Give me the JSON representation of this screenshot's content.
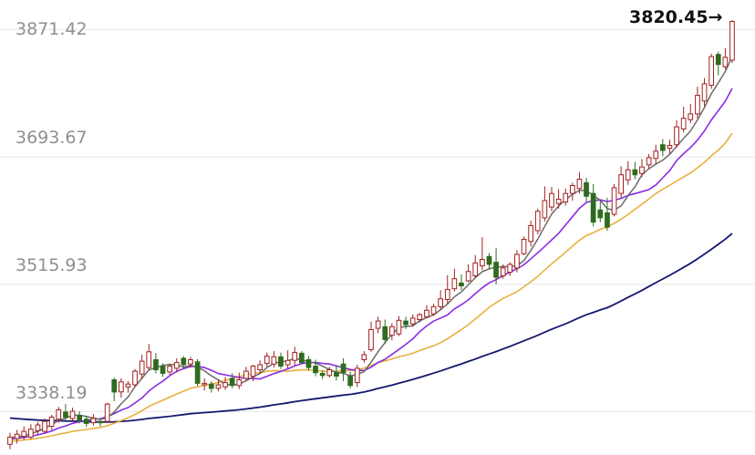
{
  "chart_data": {
    "type": "candlestick",
    "y_ticks": [
      "3871.42",
      "3693.67",
      "3515.93",
      "3338.19"
    ],
    "y_tick_values": [
      3871.42,
      3693.67,
      3515.93,
      3338.19
    ],
    "ylim": [
      3265.0,
      3900.0
    ],
    "grid": true,
    "annotation": {
      "text": "3820.45→",
      "value": 3820.45
    },
    "colors": {
      "up": "#a0201f",
      "down": "#2e6b1f",
      "ma5": "#6b6b6b",
      "ma10": "#8a2be2",
      "ma20": "#e8b040",
      "ma60": "#141870"
    },
    "candles": [
      [
        3280,
        3290,
        3296,
        3273
      ],
      [
        3288,
        3294,
        3300,
        3281
      ],
      [
        3291,
        3298,
        3305,
        3286
      ],
      [
        3290,
        3301,
        3308,
        3287
      ],
      [
        3299,
        3307,
        3311,
        3293
      ],
      [
        3298,
        3312,
        3316,
        3296
      ],
      [
        3305,
        3318,
        3321,
        3300
      ],
      [
        3315,
        3328,
        3332,
        3310
      ],
      [
        3325,
        3318,
        3336,
        3314
      ],
      [
        3316,
        3326,
        3331,
        3312
      ],
      [
        3320,
        3313,
        3326,
        3309
      ],
      [
        3315,
        3309,
        3320,
        3304
      ],
      [
        3310,
        3316,
        3322,
        3306
      ],
      [
        3312,
        3310,
        3315,
        3305
      ],
      [
        3312,
        3336,
        3338,
        3310
      ],
      [
        3370,
        3353,
        3373,
        3340
      ],
      [
        3353,
        3367,
        3372,
        3345
      ],
      [
        3360,
        3364,
        3368,
        3352
      ],
      [
        3363,
        3382,
        3385,
        3360
      ],
      [
        3378,
        3396,
        3405,
        3371
      ],
      [
        3387,
        3409,
        3420,
        3383
      ],
      [
        3398,
        3384,
        3407,
        3379
      ],
      [
        3389,
        3379,
        3393,
        3374
      ],
      [
        3381,
        3389,
        3393,
        3377
      ],
      [
        3386,
        3394,
        3400,
        3380
      ],
      [
        3400,
        3391,
        3403,
        3385
      ],
      [
        3392,
        3398,
        3402,
        3387
      ],
      [
        3395,
        3365,
        3399,
        3361
      ],
      [
        3363,
        3365,
        3372,
        3355
      ],
      [
        3364,
        3358,
        3368,
        3352
      ],
      [
        3358,
        3363,
        3370,
        3354
      ],
      [
        3360,
        3366,
        3374,
        3356
      ],
      [
        3372,
        3362,
        3379,
        3358
      ],
      [
        3362,
        3370,
        3380,
        3357
      ],
      [
        3372,
        3382,
        3388,
        3369
      ],
      [
        3375,
        3389,
        3391,
        3368
      ],
      [
        3384,
        3391,
        3397,
        3379
      ],
      [
        3393,
        3403,
        3408,
        3388
      ],
      [
        3392,
        3402,
        3410,
        3387
      ],
      [
        3402,
        3389,
        3408,
        3385
      ],
      [
        3391,
        3397,
        3411,
        3386
      ],
      [
        3397,
        3408,
        3416,
        3390
      ],
      [
        3407,
        3394,
        3410,
        3392
      ],
      [
        3398,
        3387,
        3403,
        3383
      ],
      [
        3389,
        3380,
        3398,
        3375
      ],
      [
        3379,
        3376,
        3383,
        3371
      ],
      [
        3376,
        3384,
        3388,
        3373
      ],
      [
        3380,
        3375,
        3391,
        3369
      ],
      [
        3392,
        3380,
        3400,
        3368
      ],
      [
        3375,
        3362,
        3381,
        3358
      ],
      [
        3366,
        3386,
        3391,
        3360
      ],
      [
        3398,
        3405,
        3410,
        3394
      ],
      [
        3412,
        3440,
        3451,
        3409
      ],
      [
        3442,
        3452,
        3458,
        3435
      ],
      [
        3444,
        3426,
        3454,
        3420
      ],
      [
        3432,
        3444,
        3449,
        3425
      ],
      [
        3434,
        3453,
        3459,
        3431
      ],
      [
        3452,
        3447,
        3458,
        3441
      ],
      [
        3448,
        3456,
        3461,
        3444
      ],
      [
        3454,
        3461,
        3463,
        3450
      ],
      [
        3458,
        3467,
        3474,
        3456
      ],
      [
        3462,
        3472,
        3476,
        3459
      ],
      [
        3472,
        3483,
        3495,
        3468
      ],
      [
        3482,
        3496,
        3516,
        3476
      ],
      [
        3497,
        3511,
        3525,
        3493
      ],
      [
        3505,
        3501,
        3517,
        3495
      ],
      [
        3508,
        3521,
        3531,
        3506
      ],
      [
        3515,
        3533,
        3544,
        3512
      ],
      [
        3529,
        3538,
        3569,
        3523
      ],
      [
        3542,
        3531,
        3547,
        3524
      ],
      [
        3534,
        3513,
        3554,
        3503
      ],
      [
        3515,
        3526,
        3531,
        3511
      ],
      [
        3520,
        3531,
        3534,
        3515
      ],
      [
        3526,
        3545,
        3551,
        3520
      ],
      [
        3546,
        3566,
        3570,
        3544
      ],
      [
        3563,
        3585,
        3592,
        3556
      ],
      [
        3578,
        3605,
        3609,
        3573
      ],
      [
        3596,
        3620,
        3640,
        3591
      ],
      [
        3611,
        3630,
        3639,
        3605
      ],
      [
        3616,
        3622,
        3636,
        3609
      ],
      [
        3618,
        3630,
        3637,
        3613
      ],
      [
        3630,
        3641,
        3645,
        3620
      ],
      [
        3637,
        3650,
        3660,
        3630
      ],
      [
        3645,
        3626,
        3652,
        3618
      ],
      [
        3630,
        3590,
        3643,
        3584
      ],
      [
        3607,
        3596,
        3621,
        3590
      ],
      [
        3603,
        3583,
        3624,
        3578
      ],
      [
        3601,
        3638,
        3643,
        3598
      ],
      [
        3630,
        3656,
        3668,
        3624
      ],
      [
        3649,
        3663,
        3675,
        3642
      ],
      [
        3663,
        3656,
        3674,
        3650
      ],
      [
        3658,
        3667,
        3678,
        3653
      ],
      [
        3670,
        3680,
        3685,
        3665
      ],
      [
        3679,
        3689,
        3698,
        3671
      ],
      [
        3698,
        3690,
        3706,
        3682
      ],
      [
        3693,
        3697,
        3705,
        3685
      ],
      [
        3698,
        3723,
        3732,
        3694
      ],
      [
        3720,
        3735,
        3751,
        3715
      ],
      [
        3733,
        3741,
        3755,
        3728
      ],
      [
        3741,
        3767,
        3779,
        3735
      ],
      [
        3759,
        3783,
        3791,
        3752
      ],
      [
        3781,
        3821,
        3825,
        3776
      ],
      [
        3824,
        3810,
        3828,
        3795
      ],
      [
        3807,
        3820,
        3833,
        3803
      ],
      [
        3816,
        3870,
        3872,
        3812
      ]
    ]
  }
}
